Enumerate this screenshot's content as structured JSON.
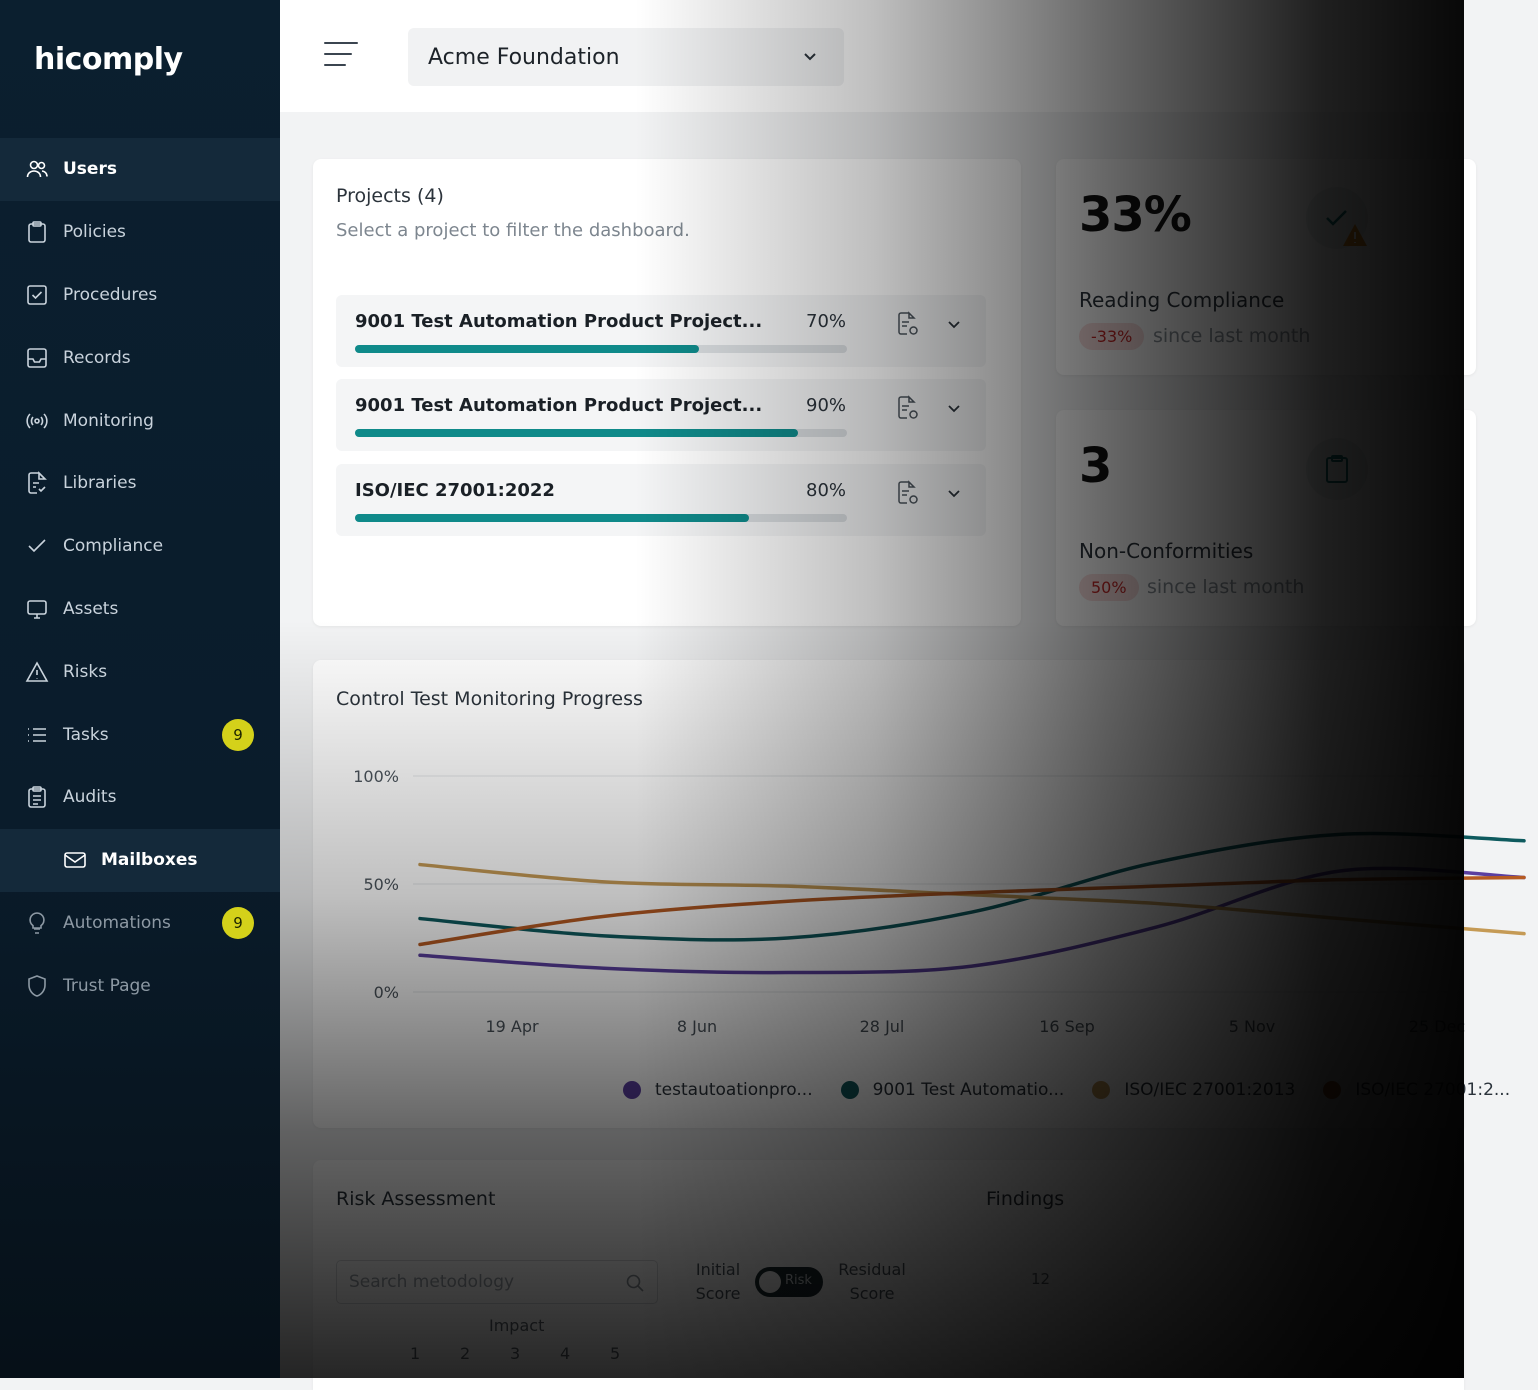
{
  "brand": {
    "logo_text": "hicomply"
  },
  "sidebar": {
    "items": [
      {
        "label": "Users",
        "icon": "users-icon"
      },
      {
        "label": "Policies",
        "icon": "clipboard-icon"
      },
      {
        "label": "Procedures",
        "icon": "checkbox-icon"
      },
      {
        "label": "Records",
        "icon": "inbox-icon"
      },
      {
        "label": "Monitoring",
        "icon": "broadcast-icon"
      },
      {
        "label": "Libraries",
        "icon": "document-check-icon"
      },
      {
        "label": "Compliance",
        "icon": "check-icon"
      },
      {
        "label": "Assets",
        "icon": "monitor-icon"
      },
      {
        "label": "Risks",
        "icon": "warning-icon"
      },
      {
        "label": "Tasks",
        "icon": "list-icon",
        "badge": "9"
      },
      {
        "label": "Audits",
        "icon": "clipboard-list-icon"
      },
      {
        "label": "Mailboxes",
        "icon": "mail-icon"
      },
      {
        "label": "Automations",
        "icon": "lightbulb-icon",
        "badge": "9"
      },
      {
        "label": "Trust Page",
        "icon": "shield-icon"
      }
    ]
  },
  "topbar": {
    "org_name": "Acme Foundation"
  },
  "projects": {
    "title": "Projects (4)",
    "subtitle": "Select a project to filter the dashboard.",
    "rows": [
      {
        "name": "9001 Test Automation Product Project...",
        "percent_label": "70%",
        "progress": 0.7
      },
      {
        "name": "9001 Test Automation Product Project...",
        "percent_label": "90%",
        "progress": 0.9
      },
      {
        "name": "ISO/IEC 27001:2022",
        "percent_label": "80%",
        "progress": 0.8
      }
    ]
  },
  "stats": [
    {
      "value": "33%",
      "label": "Reading Compliance",
      "change": "-33%",
      "since": "since last month"
    },
    {
      "value": "3",
      "label": "Non-Conformities",
      "change": "50%",
      "since": "since last month"
    }
  ],
  "chart": {
    "title": "Control Test Monitoring Progress"
  },
  "chart_data": {
    "type": "line",
    "title": "Control Test Monitoring Progress",
    "y_ticks": [
      "100%",
      "50%",
      "0%"
    ],
    "ylim": [
      0,
      100
    ],
    "x_ticks": [
      "19 Apr",
      "8 Jun",
      "28 Jul",
      "16 Sep",
      "5 Nov",
      "25 Dec"
    ],
    "x": [
      0,
      1,
      2,
      3,
      4,
      5,
      6
    ],
    "series": [
      {
        "name": "testautoationpro...",
        "color": "#5b3fa0",
        "values": [
          17,
          11,
          9,
          12,
          30,
          56,
          53
        ]
      },
      {
        "name": "9001 Test Automatio...",
        "color": "#0e5a5e",
        "values": [
          34,
          26,
          25,
          37,
          60,
          73,
          70
        ]
      },
      {
        "name": "ISO/IEC 27001:2013",
        "color": "#c59a55",
        "values": [
          59,
          51,
          49,
          45,
          41,
          34,
          27
        ]
      },
      {
        "name": "ISO/IEC 27001:2...",
        "color": "#b65a22",
        "values": [
          22,
          35,
          42,
          46,
          49,
          52,
          53
        ]
      }
    ],
    "grid": true,
    "legend_position": "bottom"
  },
  "risk": {
    "title": "Risk Assessment",
    "search_placeholder": "Search metodology",
    "initial_label": "Initial Score",
    "toggle_label": "Risk",
    "residual_label": "Residual Score",
    "impact_label": "Impact",
    "impact_nums": [
      "1",
      "2",
      "3",
      "4",
      "5"
    ],
    "findings_title": "Findings",
    "findings_value": "12"
  }
}
